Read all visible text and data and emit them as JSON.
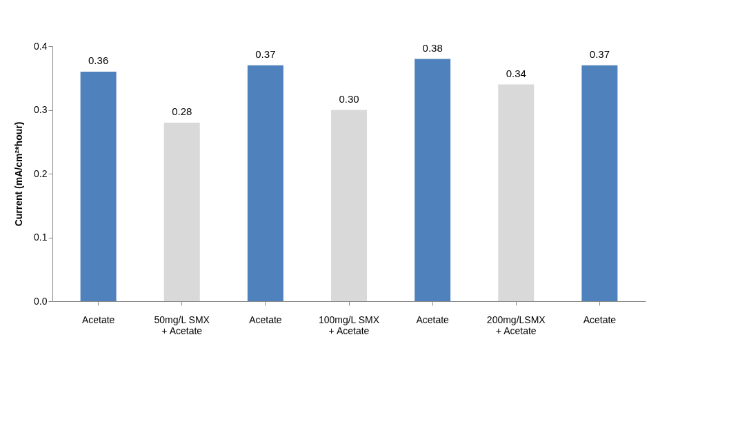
{
  "chart_data": {
    "type": "bar",
    "ylabel": "Current (mA/cm²*hour)",
    "categories": [
      "Acetate",
      "50mg/L SMX\n+ Acetate",
      "Acetate",
      "100mg/L SMX\n+ Acetate",
      "Acetate",
      "200mg/LSMX\n+ Acetate",
      "Acetate"
    ],
    "values": [
      0.36,
      0.28,
      0.37,
      0.3,
      0.38,
      0.34,
      0.37
    ],
    "value_labels": [
      "0.36",
      "0.28",
      "0.37",
      "0.30",
      "0.38",
      "0.34",
      "0.37"
    ],
    "colors": [
      "#4f81bd",
      "#d9d9d9",
      "#4f81bd",
      "#d9d9d9",
      "#4f81bd",
      "#d9d9d9",
      "#4f81bd"
    ],
    "ylim": [
      0,
      0.4
    ],
    "yticks": [
      {
        "value": 0,
        "label": "0.0"
      },
      0.1,
      0.2,
      0.3,
      0.4
    ],
    "grid": false
  }
}
